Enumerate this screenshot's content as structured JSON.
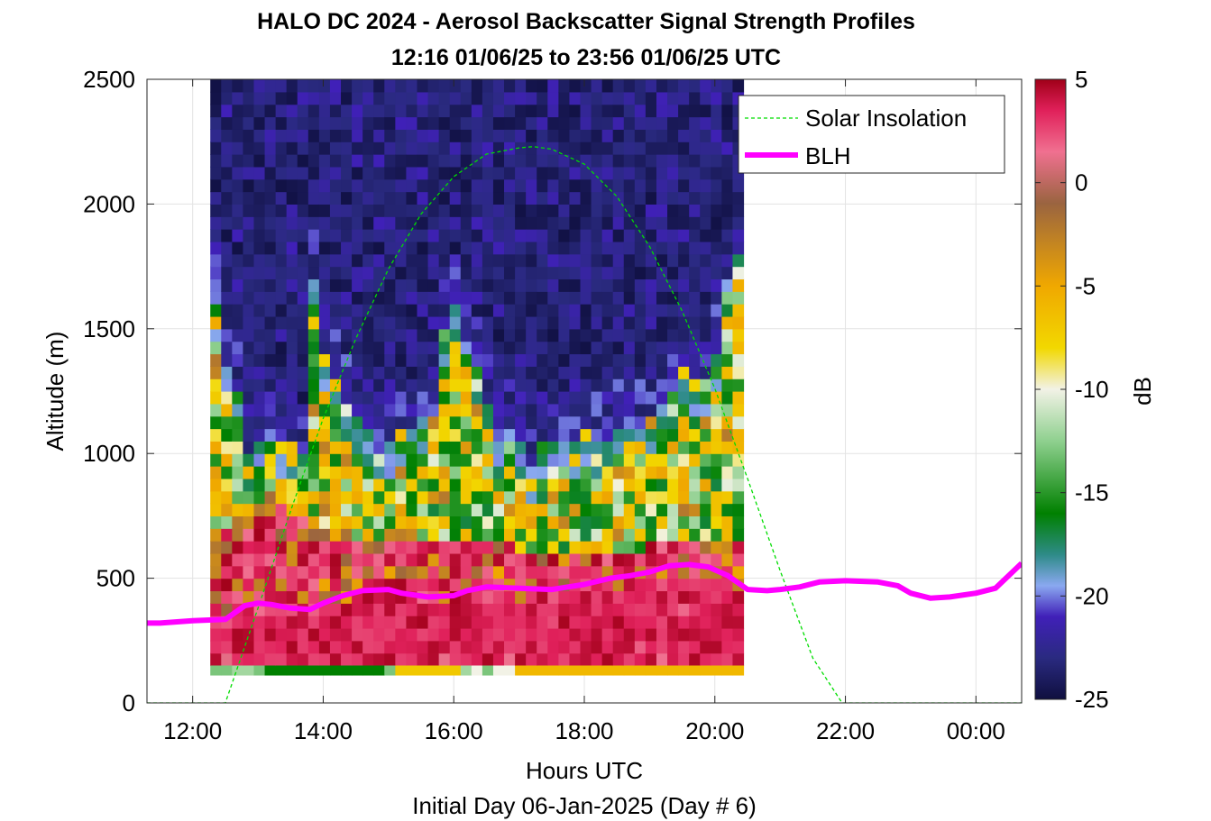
{
  "chart_data": {
    "type": "heatmap",
    "title": "HALO DC 2024 - Aerosol Backscatter Signal Strength Profiles",
    "subtitle": "12:16 01/06/25 to 23:56 01/06/25  UTC",
    "xlabel": "Hours UTC",
    "xlabel2": "Initial Day 06-Jan-2025 (Day # 6)",
    "ylabel": "Altitude (m)",
    "x_unit": "hours UTC",
    "xlim": [
      11.3,
      24.7
    ],
    "ylim": [
      0,
      2500
    ],
    "x_ticks": [
      12,
      14,
      16,
      18,
      20,
      22,
      24
    ],
    "x_tick_labels": [
      "12:00",
      "14:00",
      "16:00",
      "18:00",
      "20:00",
      "22:00",
      "00:00"
    ],
    "y_ticks": [
      0,
      500,
      1000,
      1500,
      2000,
      2500
    ],
    "y_tick_labels": [
      "0",
      "500",
      "1000",
      "1500",
      "2000",
      "2500"
    ],
    "grid": true,
    "legend_position": "top-right",
    "colorbar": {
      "label": "dB",
      "range": [
        -25,
        5
      ],
      "ticks": [
        5,
        0,
        -5,
        -10,
        -15,
        -20,
        -25
      ],
      "tick_labels": [
        "5",
        "0",
        "-5",
        "-10",
        "-15",
        "-20",
        "-25"
      ],
      "colors": [
        "#0f0f3f",
        "#2a2a80",
        "#4020b8",
        "#8aa8f0",
        "#2e8b88",
        "#008000",
        "#8fd08f",
        "#f2f2e6",
        "#f2d800",
        "#f0a800",
        "#9a6440",
        "#f07090",
        "#e0205a",
        "#a00018"
      ],
      "color_values": [
        -25,
        -23,
        -21,
        -19.5,
        -18,
        -16,
        -12.5,
        -10,
        -8,
        -5,
        -1,
        1.5,
        3.5,
        5
      ]
    },
    "heatmap": {
      "x_start": 12.27,
      "x_step": 0.1667,
      "y_values": [
        150,
        200,
        250,
        300,
        350,
        400,
        450,
        500,
        550,
        600,
        650,
        700,
        750,
        800,
        850,
        900,
        950,
        1000,
        1050,
        1100,
        1150,
        1200,
        1250,
        1300,
        1350,
        1400,
        1450,
        1500,
        1550,
        1600,
        1650,
        1700,
        1750,
        1800,
        1850,
        1900,
        1950,
        2000,
        2050,
        2100,
        2150,
        2200,
        2250,
        2300,
        2350,
        2400,
        2450
      ],
      "surface_band_dB": [
        -13,
        -13,
        -13,
        -13,
        -12,
        -13,
        -12,
        -12,
        -13,
        -16,
        -16,
        -16,
        -16,
        -16,
        -16,
        -16,
        -16,
        -16,
        -16,
        -16,
        -16,
        -16,
        -16,
        -16,
        -16,
        -16,
        -16,
        -16,
        -16,
        -16,
        -16,
        -13,
        -13,
        -13,
        -7,
        -7,
        -7,
        -7,
        -7,
        -7,
        -7,
        -7,
        -7,
        -7,
        -7,
        -7,
        -12,
        -10,
        -10,
        -10,
        -13,
        -10,
        -10,
        -8,
        -10,
        -6,
        -6,
        -6,
        -6,
        -6,
        -6,
        -6,
        -6,
        -6,
        -6,
        -6,
        -6,
        -6,
        -6,
        -6,
        -6,
        -6,
        -6,
        -6,
        -6,
        -6,
        -6,
        -6,
        -6,
        -6,
        -6,
        -6,
        -6,
        -6,
        -6
      ],
      "boundary_layer_top_m": [
        1600,
        1350,
        1250,
        1000,
        1050,
        1100,
        1050,
        1050,
        1000,
        1700,
        1400,
        1300,
        1200,
        1150,
        1100,
        1000,
        1050,
        1100,
        1100,
        1150,
        1150,
        1500,
        1600,
        1450,
        1350,
        1200,
        1050,
        1100,
        1050,
        950,
        1050,
        1050,
        1050,
        1050,
        1100,
        1050,
        1050,
        1100,
        1150,
        1100,
        1150,
        1200,
        1250,
        1350,
        1300,
        1300,
        1400,
        1700,
        1800
      ],
      "aerosol_top_m": [
        700,
        700,
        700,
        750,
        800,
        850,
        800,
        750,
        750,
        700,
        700,
        700,
        700,
        650,
        650,
        650,
        650,
        650,
        650,
        650,
        650,
        650,
        650,
        650,
        650,
        650,
        650,
        650,
        600,
        600,
        600,
        600,
        600,
        600,
        600,
        600,
        600,
        600,
        600,
        600,
        650,
        650,
        650,
        650,
        650,
        650,
        650,
        650,
        650
      ]
    },
    "series": [
      {
        "name": "Solar Insolation",
        "style": "dashed",
        "color": "#00dd00",
        "sunrise": 12.5,
        "sunset": 21.95,
        "peak_x": 17.22,
        "peak_y": 2230,
        "x": [
          11.3,
          12.5,
          13.0,
          13.5,
          14.0,
          14.5,
          15.0,
          15.5,
          16.0,
          16.5,
          17.0,
          17.22,
          17.5,
          18.0,
          18.5,
          19.0,
          19.5,
          20.0,
          20.5,
          21.0,
          21.5,
          21.95,
          24.7
        ],
        "y": [
          0,
          0,
          380,
          770,
          1140,
          1460,
          1740,
          1960,
          2110,
          2200,
          2225,
          2230,
          2220,
          2160,
          2030,
          1830,
          1570,
          1260,
          900,
          530,
          180,
          0,
          0
        ]
      },
      {
        "name": "BLH",
        "style": "solid",
        "color": "#ff00ff",
        "x": [
          11.3,
          11.5,
          12.0,
          12.5,
          12.8,
          13.0,
          13.2,
          13.5,
          13.8,
          14.0,
          14.3,
          14.6,
          15.0,
          15.2,
          15.6,
          16.0,
          16.2,
          16.5,
          17.0,
          17.5,
          18.0,
          18.4,
          18.7,
          19.0,
          19.3,
          19.6,
          19.9,
          20.2,
          20.5,
          20.8,
          21.0,
          21.3,
          21.6,
          22.0,
          22.5,
          22.8,
          23.0,
          23.3,
          23.6,
          24.0,
          24.3,
          24.7
        ],
        "y": [
          320,
          320,
          330,
          335,
          390,
          400,
          395,
          380,
          375,
          400,
          430,
          450,
          455,
          440,
          425,
          430,
          450,
          465,
          460,
          455,
          475,
          500,
          510,
          525,
          550,
          555,
          545,
          510,
          455,
          450,
          455,
          465,
          485,
          490,
          485,
          470,
          440,
          420,
          425,
          440,
          460,
          560
        ]
      }
    ]
  }
}
